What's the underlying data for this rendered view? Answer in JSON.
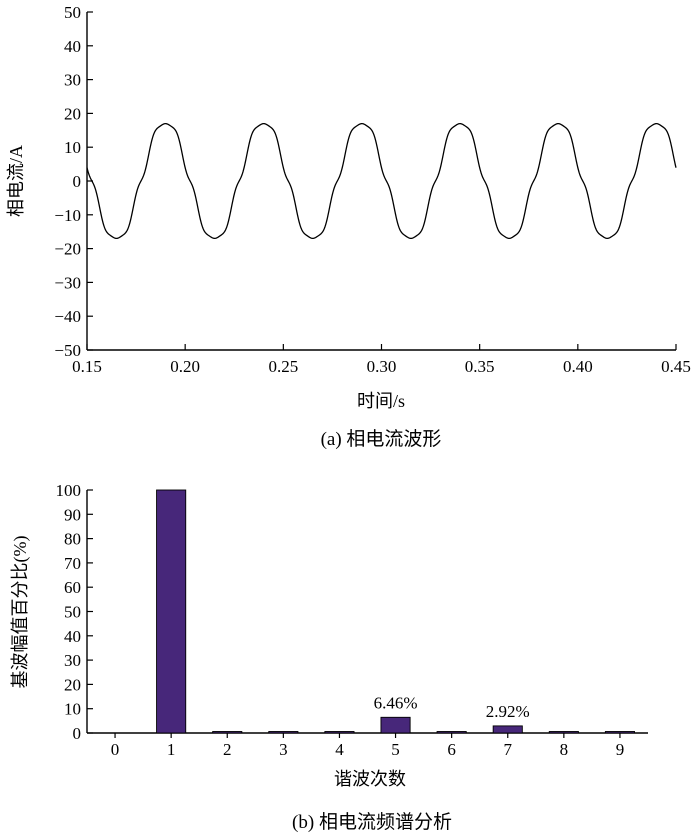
{
  "chart_data": [
    {
      "type": "line",
      "caption": "(a) 相电流波形",
      "xlabel": "时间/s",
      "ylabel": "相电流/A",
      "xlim": [
        0.15,
        0.45
      ],
      "ylim": [
        -50,
        50
      ],
      "x_ticks": [
        "0.15",
        "0.20",
        "0.25",
        "0.30",
        "0.35",
        "0.40",
        "0.45"
      ],
      "y_ticks": [
        "50",
        "40",
        "30",
        "20",
        "10",
        "0",
        "−10",
        "−20",
        "−30",
        "−40",
        "−50"
      ],
      "series": [
        {
          "amplitude": 17.5,
          "frequency_hz": 20,
          "peak_times": [
            0.19,
            0.24,
            0.29,
            0.34,
            0.39,
            0.44
          ]
        }
      ]
    },
    {
      "type": "bar",
      "caption": "(b) 相电流频谱分析",
      "xlabel": "谐波次数",
      "ylabel": "基波幅值百分比(%)",
      "categories": [
        "0",
        "1",
        "2",
        "3",
        "4",
        "5",
        "6",
        "7",
        "8",
        "9"
      ],
      "values": [
        0,
        100,
        0.5,
        0.5,
        0.6,
        6.46,
        0.6,
        2.92,
        0.5,
        0.5
      ],
      "data_labels": {
        "5": "6.46%",
        "7": "2.92%"
      },
      "ylim": [
        0,
        100
      ],
      "y_ticks": [
        "100",
        "90",
        "80",
        "70",
        "60",
        "50",
        "40",
        "30",
        "20",
        "10",
        "0"
      ],
      "bar_color": "#47277a"
    }
  ]
}
